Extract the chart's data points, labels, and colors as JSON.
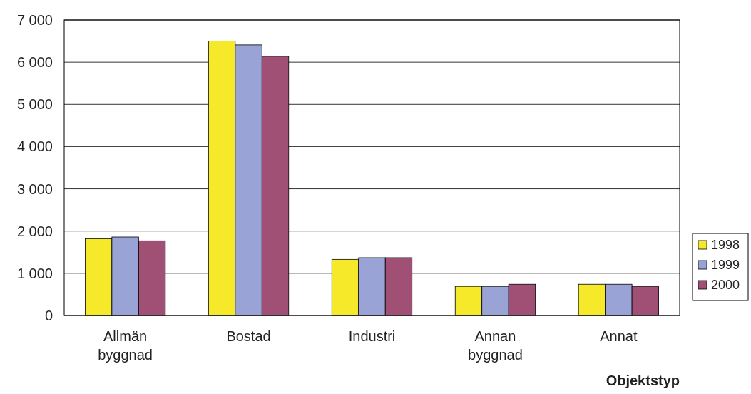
{
  "chart_data": {
    "type": "bar",
    "xlabel": "Objektstyp",
    "categories": [
      "Allmän byggnad",
      "Bostad",
      "Industri",
      "Annan byggnad",
      "Annat"
    ],
    "series": [
      {
        "name": "1998",
        "color": "#f5e92a",
        "values": [
          1820,
          6500,
          1330,
          690,
          740
        ]
      },
      {
        "name": "1999",
        "color": "#99a3d6",
        "values": [
          1860,
          6410,
          1370,
          690,
          740
        ]
      },
      {
        "name": "2000",
        "color": "#a05075",
        "values": [
          1770,
          6140,
          1370,
          740,
          690
        ]
      }
    ],
    "ylim": [
      0,
      7000
    ],
    "yticks": [
      0,
      {
        "value": 1000,
        "label": "1 000"
      },
      {
        "value": 2000,
        "label": "2 000"
      },
      {
        "value": 3000,
        "label": "3 000"
      },
      {
        "value": 4000,
        "label": "4 000"
      },
      {
        "value": 5000,
        "label": "5 000"
      },
      {
        "value": 6000,
        "label": "6 000"
      },
      {
        "value": 7000,
        "label": "7 000"
      }
    ],
    "grid": "y",
    "legend": "right"
  }
}
